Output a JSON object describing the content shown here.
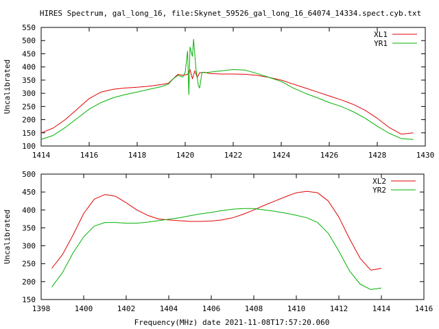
{
  "title": "HIRES Spectrum, gal_long_16, file:Skynet_59526_gal_long_16_64074_14334.spect.cyb.txt",
  "footer_xlabel": "Frequency(MHz) date 2021-11-08T17:57:20.060",
  "colors": {
    "red": "#e00000",
    "green": "#00b000",
    "axis": "#000000"
  },
  "chart_data": [
    {
      "type": "line",
      "title": "HIRES Spectrum, gal_long_16, file:Skynet_59526_gal_long_16_64074_14334.spect.cyb.txt",
      "xlabel": "",
      "ylabel": "Uncalibrated",
      "xlim": [
        1414,
        1430
      ],
      "ylim": [
        100,
        550
      ],
      "xticks": [
        1414,
        1416,
        1418,
        1420,
        1422,
        1424,
        1426,
        1428,
        1430
      ],
      "yticks": [
        100,
        150,
        200,
        250,
        300,
        350,
        400,
        450,
        500,
        550
      ],
      "grid": false,
      "legend": "top-right",
      "series": [
        {
          "name": "XL1",
          "color": "#e00000",
          "x": [
            1414.0,
            1414.5,
            1415.0,
            1415.5,
            1416.0,
            1416.5,
            1417.0,
            1417.5,
            1418.0,
            1418.5,
            1419.0,
            1419.3,
            1419.5,
            1419.7,
            1419.9,
            1420.1,
            1420.2,
            1420.3,
            1420.4,
            1420.5,
            1420.6,
            1420.8,
            1421.0,
            1421.5,
            1422.0,
            1422.5,
            1423.0,
            1423.5,
            1424.0,
            1424.5,
            1425.0,
            1425.5,
            1426.0,
            1426.5,
            1427.0,
            1427.5,
            1428.0,
            1428.5,
            1429.0,
            1429.5
          ],
          "y": [
            150,
            168,
            200,
            240,
            280,
            305,
            315,
            320,
            323,
            327,
            333,
            338,
            355,
            372,
            368,
            372,
            390,
            355,
            385,
            360,
            378,
            380,
            375,
            373,
            373,
            372,
            368,
            360,
            350,
            335,
            320,
            305,
            290,
            275,
            258,
            235,
            205,
            170,
            145,
            150
          ]
        },
        {
          "name": "YR1",
          "color": "#00b000",
          "x": [
            1414.0,
            1414.5,
            1415.0,
            1415.5,
            1416.0,
            1416.5,
            1417.0,
            1417.5,
            1418.0,
            1418.5,
            1419.0,
            1419.3,
            1419.5,
            1419.7,
            1419.9,
            1420.0,
            1420.1,
            1420.15,
            1420.2,
            1420.3,
            1420.35,
            1420.45,
            1420.55,
            1420.6,
            1420.7,
            1420.85,
            1421.0,
            1421.5,
            1422.0,
            1422.5,
            1423.0,
            1423.5,
            1424.0,
            1424.5,
            1425.0,
            1425.5,
            1426.0,
            1426.5,
            1427.0,
            1427.5,
            1428.0,
            1428.5,
            1429.0,
            1429.5
          ],
          "y": [
            125,
            140,
            170,
            205,
            240,
            265,
            283,
            295,
            305,
            315,
            325,
            335,
            355,
            368,
            362,
            380,
            460,
            295,
            475,
            440,
            505,
            390,
            330,
            320,
            380,
            378,
            380,
            385,
            390,
            388,
            375,
            360,
            345,
            320,
            300,
            283,
            265,
            250,
            230,
            205,
            175,
            148,
            128,
            125
          ]
        }
      ]
    },
    {
      "type": "line",
      "xlabel": "Frequency(MHz) date 2021-11-08T17:57:20.060",
      "ylabel": "Uncalibrated",
      "xlim": [
        1398,
        1416
      ],
      "ylim": [
        150,
        500
      ],
      "xticks": [
        1398,
        1400,
        1402,
        1404,
        1406,
        1408,
        1410,
        1412,
        1414,
        1416
      ],
      "yticks": [
        150,
        200,
        250,
        300,
        350,
        400,
        450,
        500
      ],
      "grid": false,
      "legend": "top-right",
      "series": [
        {
          "name": "XL2",
          "color": "#e00000",
          "x": [
            1398.5,
            1399.0,
            1399.5,
            1400.0,
            1400.5,
            1401.0,
            1401.5,
            1402.0,
            1402.5,
            1403.0,
            1403.5,
            1404.0,
            1404.5,
            1405.0,
            1405.5,
            1406.0,
            1406.5,
            1407.0,
            1407.5,
            1408.0,
            1408.5,
            1409.0,
            1409.5,
            1410.0,
            1410.5,
            1411.0,
            1411.5,
            1412.0,
            1412.5,
            1413.0,
            1413.5,
            1414.0
          ],
          "y": [
            237,
            275,
            330,
            390,
            430,
            443,
            438,
            420,
            400,
            385,
            375,
            372,
            370,
            368,
            368,
            369,
            372,
            378,
            388,
            400,
            413,
            425,
            437,
            448,
            452,
            448,
            425,
            380,
            320,
            265,
            232,
            237
          ]
        },
        {
          "name": "YR2",
          "color": "#00b000",
          "x": [
            1398.5,
            1399.0,
            1399.5,
            1400.0,
            1400.5,
            1401.0,
            1401.5,
            1402.0,
            1402.5,
            1403.0,
            1403.5,
            1404.0,
            1404.5,
            1405.0,
            1405.5,
            1406.0,
            1406.5,
            1407.0,
            1407.5,
            1408.0,
            1408.5,
            1409.0,
            1409.5,
            1410.0,
            1410.5,
            1411.0,
            1411.5,
            1412.0,
            1412.5,
            1413.0,
            1413.5,
            1414.0
          ],
          "y": [
            185,
            225,
            280,
            325,
            355,
            365,
            365,
            363,
            363,
            366,
            370,
            374,
            378,
            384,
            389,
            393,
            398,
            402,
            404,
            404,
            400,
            396,
            391,
            385,
            378,
            365,
            335,
            285,
            230,
            193,
            178,
            182
          ]
        }
      ]
    }
  ]
}
